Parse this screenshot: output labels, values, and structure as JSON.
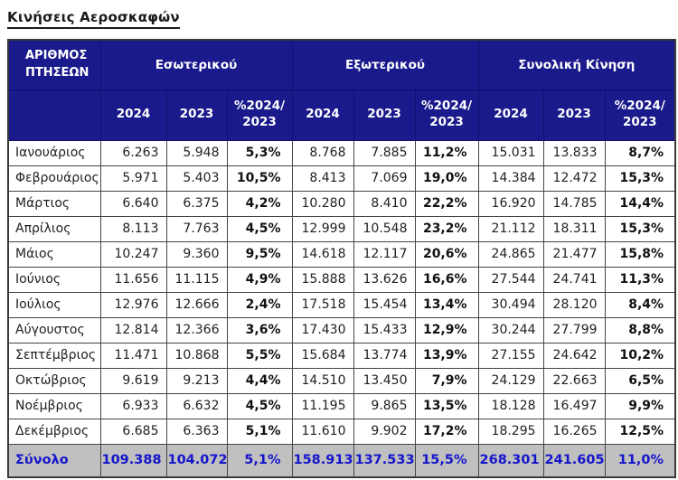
{
  "page_title": "Κινήσεις Αεροσκαφών",
  "table": {
    "corner_header": "ΑΡΙΘΜΟΣ ΠΤΗΣΕΩΝ",
    "groups": [
      {
        "label": "Εσωτερικού"
      },
      {
        "label": "Εξωτερικού"
      },
      {
        "label": "Συνολική Κίνηση"
      }
    ],
    "sub_headers": [
      "2024",
      "2023",
      "%2024/ 2023"
    ],
    "rows": [
      {
        "month": "Ιανουάριος",
        "values": [
          "6.263",
          "5.948",
          "5,3%",
          "8.768",
          "7.885",
          "11,2%",
          "15.031",
          "13.833",
          "8,7%"
        ]
      },
      {
        "month": "Φεβρουάριος",
        "values": [
          "5.971",
          "5.403",
          "10,5%",
          "8.413",
          "7.069",
          "19,0%",
          "14.384",
          "12.472",
          "15,3%"
        ]
      },
      {
        "month": "Μάρτιος",
        "values": [
          "6.640",
          "6.375",
          "4,2%",
          "10.280",
          "8.410",
          "22,2%",
          "16.920",
          "14.785",
          "14,4%"
        ]
      },
      {
        "month": "Απρίλιος",
        "values": [
          "8.113",
          "7.763",
          "4,5%",
          "12.999",
          "10.548",
          "23,2%",
          "21.112",
          "18.311",
          "15,3%"
        ]
      },
      {
        "month": "Μάιος",
        "values": [
          "10.247",
          "9.360",
          "9,5%",
          "14.618",
          "12.117",
          "20,6%",
          "24.865",
          "21.477",
          "15,8%"
        ]
      },
      {
        "month": "Ιούνιος",
        "values": [
          "11.656",
          "11.115",
          "4,9%",
          "15.888",
          "13.626",
          "16,6%",
          "27.544",
          "24.741",
          "11,3%"
        ]
      },
      {
        "month": "Ιούλιος",
        "values": [
          "12.976",
          "12.666",
          "2,4%",
          "17.518",
          "15.454",
          "13,4%",
          "30.494",
          "28.120",
          "8,4%"
        ]
      },
      {
        "month": "Αύγουστος",
        "values": [
          "12.814",
          "12.366",
          "3,6%",
          "17.430",
          "15.433",
          "12,9%",
          "30.244",
          "27.799",
          "8,8%"
        ]
      },
      {
        "month": "Σεπτέμβριος",
        "values": [
          "11.471",
          "10.868",
          "5,5%",
          "15.684",
          "13.774",
          "13,9%",
          "27.155",
          "24.642",
          "10,2%"
        ]
      },
      {
        "month": "Οκτώβριος",
        "values": [
          "9.619",
          "9.213",
          "4,4%",
          "14.510",
          "13.450",
          "7,9%",
          "24.129",
          "22.663",
          "6,5%"
        ]
      },
      {
        "month": "Νοέμβριος",
        "values": [
          "6.933",
          "6.632",
          "4,5%",
          "11.195",
          "9.865",
          "13,5%",
          "18.128",
          "16.497",
          "9,9%"
        ]
      },
      {
        "month": "Δεκέμβριος",
        "values": [
          "6.685",
          "6.363",
          "5,1%",
          "11.610",
          "9.902",
          "17,2%",
          "18.295",
          "16.265",
          "12,5%"
        ]
      }
    ],
    "total": {
      "label": "Σύνολο",
      "values": [
        "109.388",
        "104.072",
        "5,1%",
        "158.913",
        "137.533",
        "15,5%",
        "268.301",
        "241.605",
        "11,0%"
      ]
    }
  },
  "colors": {
    "header_bg": "#1a1a8c",
    "header_text": "#ffffff",
    "total_bg": "#c0c0c0",
    "total_text": "#1515cc",
    "grid_border": "#454545"
  }
}
